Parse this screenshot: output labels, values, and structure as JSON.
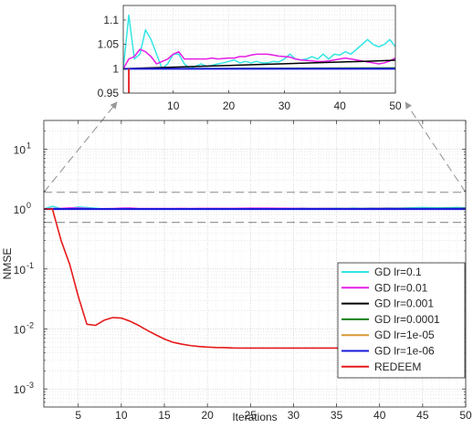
{
  "chart_data": [
    {
      "id": "main",
      "type": "line",
      "xlabel": "Iterations",
      "ylabel": "NMSE",
      "xlim": [
        1,
        50
      ],
      "ylim": [
        0.0005,
        30
      ],
      "yscale": "log",
      "grid": true,
      "legend_position": "bottom-right",
      "x_ticks": [
        5,
        10,
        15,
        20,
        25,
        30,
        35,
        40,
        45,
        50
      ],
      "x_tick_labels": [
        "5",
        "10",
        "15",
        "20",
        "25",
        "30",
        "35",
        "40",
        "45",
        "50"
      ],
      "y_ticks": [
        0.001,
        0.01,
        0.1,
        1,
        10
      ],
      "y_tick_labels": [
        {
          "base": "10",
          "exp": "-3"
        },
        {
          "base": "10",
          "exp": "-2"
        },
        {
          "base": "10",
          "exp": "-1"
        },
        {
          "base": "10",
          "exp": "0"
        },
        {
          "base": "10",
          "exp": "1"
        }
      ],
      "zoom_region": {
        "x": [
          1,
          50
        ],
        "y": [
          0.6,
          1.9
        ]
      },
      "series": [
        {
          "name": "GD lr=0.1",
          "color": "#33e5e5",
          "x": [
            1,
            2,
            3,
            4,
            5,
            6,
            7,
            8,
            9,
            10,
            11,
            12,
            13,
            14,
            15,
            16,
            17,
            18,
            19,
            20,
            21,
            22,
            23,
            24,
            25,
            26,
            27,
            28,
            29,
            30,
            31,
            32,
            33,
            34,
            35,
            36,
            37,
            38,
            39,
            40,
            41,
            42,
            43,
            44,
            45,
            46,
            47,
            48,
            49,
            50
          ],
          "y": [
            1,
            1.11,
            1.02,
            1.03,
            1.08,
            1.06,
            1.03,
            1.0,
            1.01,
            1.03,
            1.03,
            1.01,
            1.0,
            1.005,
            1.01,
            1.005,
            1.007,
            1.01,
            1.012,
            1.015,
            1.018,
            1.012,
            1.015,
            1.012,
            1.015,
            1.012,
            1.012,
            1.015,
            1.014,
            1.02,
            1.03,
            1.02,
            1.018,
            1.02,
            1.025,
            1.02,
            1.03,
            1.02,
            1.03,
            1.028,
            1.035,
            1.03,
            1.04,
            1.05,
            1.06,
            1.05,
            1.045,
            1.05,
            1.06,
            1.045
          ]
        },
        {
          "name": "GD lr=0.01",
          "color": "#e61ee6",
          "x": [
            1,
            2,
            3,
            4,
            5,
            6,
            7,
            8,
            9,
            10,
            11,
            12,
            13,
            14,
            15,
            16,
            17,
            18,
            19,
            20,
            21,
            22,
            23,
            24,
            25,
            26,
            27,
            28,
            29,
            30,
            31,
            32,
            33,
            34,
            35,
            36,
            37,
            38,
            39,
            40,
            41,
            42,
            43,
            44,
            45,
            46,
            47,
            48,
            49,
            50
          ],
          "y": [
            1,
            1.02,
            1.025,
            1.04,
            1.035,
            1.025,
            1.01,
            1.015,
            1.02,
            1.03,
            1.035,
            1.02,
            1.02,
            1.02,
            1.02,
            1.02,
            1.022,
            1.02,
            1.021,
            1.022,
            1.022,
            1.025,
            1.025,
            1.028,
            1.03,
            1.03,
            1.03,
            1.028,
            1.026,
            1.025,
            1.024,
            1.02,
            1.018,
            1.017,
            1.016,
            1.015,
            1.015,
            1.016,
            1.018,
            1.02,
            1.022,
            1.02,
            1.018,
            1.016,
            1.014,
            1.012,
            1.01,
            1.012,
            1.016,
            1.022
          ]
        },
        {
          "name": "GD lr=0.001",
          "color": "#000000",
          "x": [
            1,
            5,
            10,
            15,
            20,
            25,
            30,
            35,
            40,
            45,
            50
          ],
          "y": [
            1.0,
            1.0015,
            1.0033,
            1.005,
            1.0068,
            1.0085,
            1.0103,
            1.012,
            1.0138,
            1.0155,
            1.0175
          ]
        },
        {
          "name": "GD lr=0.0001",
          "color": "#1a801a",
          "x": [
            1,
            50
          ],
          "y": [
            1.0,
            1.0018
          ]
        },
        {
          "name": "GD lr=1e-05",
          "color": "#d99933",
          "x": [
            1,
            50
          ],
          "y": [
            1.0,
            1.0002
          ]
        },
        {
          "name": "GD lr=1e-06",
          "color": "#1a1ad9",
          "x": [
            1,
            50
          ],
          "y": [
            1.0,
            1.0
          ]
        },
        {
          "name": "REDEEM",
          "color": "#e61a1a",
          "x": [
            1,
            2,
            3,
            4,
            5,
            6,
            7,
            8,
            9,
            10,
            11,
            12,
            13,
            14,
            15,
            16,
            17,
            18,
            19,
            20,
            21,
            22,
            23,
            24,
            25,
            26,
            27,
            28,
            29,
            30,
            31,
            32,
            33,
            34,
            35,
            36,
            37,
            38,
            39,
            40
          ],
          "y": [
            1,
            1,
            0.3,
            0.12,
            0.035,
            0.012,
            0.0115,
            0.014,
            0.0155,
            0.0152,
            0.0135,
            0.0115,
            0.0095,
            0.008,
            0.0068,
            0.006,
            0.0056,
            0.0053,
            0.0051,
            0.005,
            0.0049,
            0.00488,
            0.00482,
            0.0048,
            0.0048,
            0.0048,
            0.0048,
            0.0048,
            0.0048,
            0.0048,
            0.0048,
            0.0048,
            0.0048,
            0.0048,
            0.0048,
            0.0048,
            0.0048,
            0.0048,
            0.0048,
            0.0048
          ]
        }
      ]
    },
    {
      "id": "inset",
      "type": "line",
      "xlim": [
        1,
        50
      ],
      "ylim": [
        0.95,
        1.13
      ],
      "grid": true,
      "x_ticks": [
        10,
        20,
        30,
        40,
        50
      ],
      "x_tick_labels": [
        "10",
        "20",
        "30",
        "40",
        "50"
      ],
      "y_ticks": [
        0.95,
        1.0,
        1.05,
        1.1
      ],
      "y_tick_labels": [
        "0.95",
        "1",
        "1.05",
        "1.1"
      ],
      "series_ref": "main",
      "redeem_segment": {
        "x": [
          2,
          2
        ],
        "y": [
          1.0,
          0.95
        ]
      }
    }
  ]
}
